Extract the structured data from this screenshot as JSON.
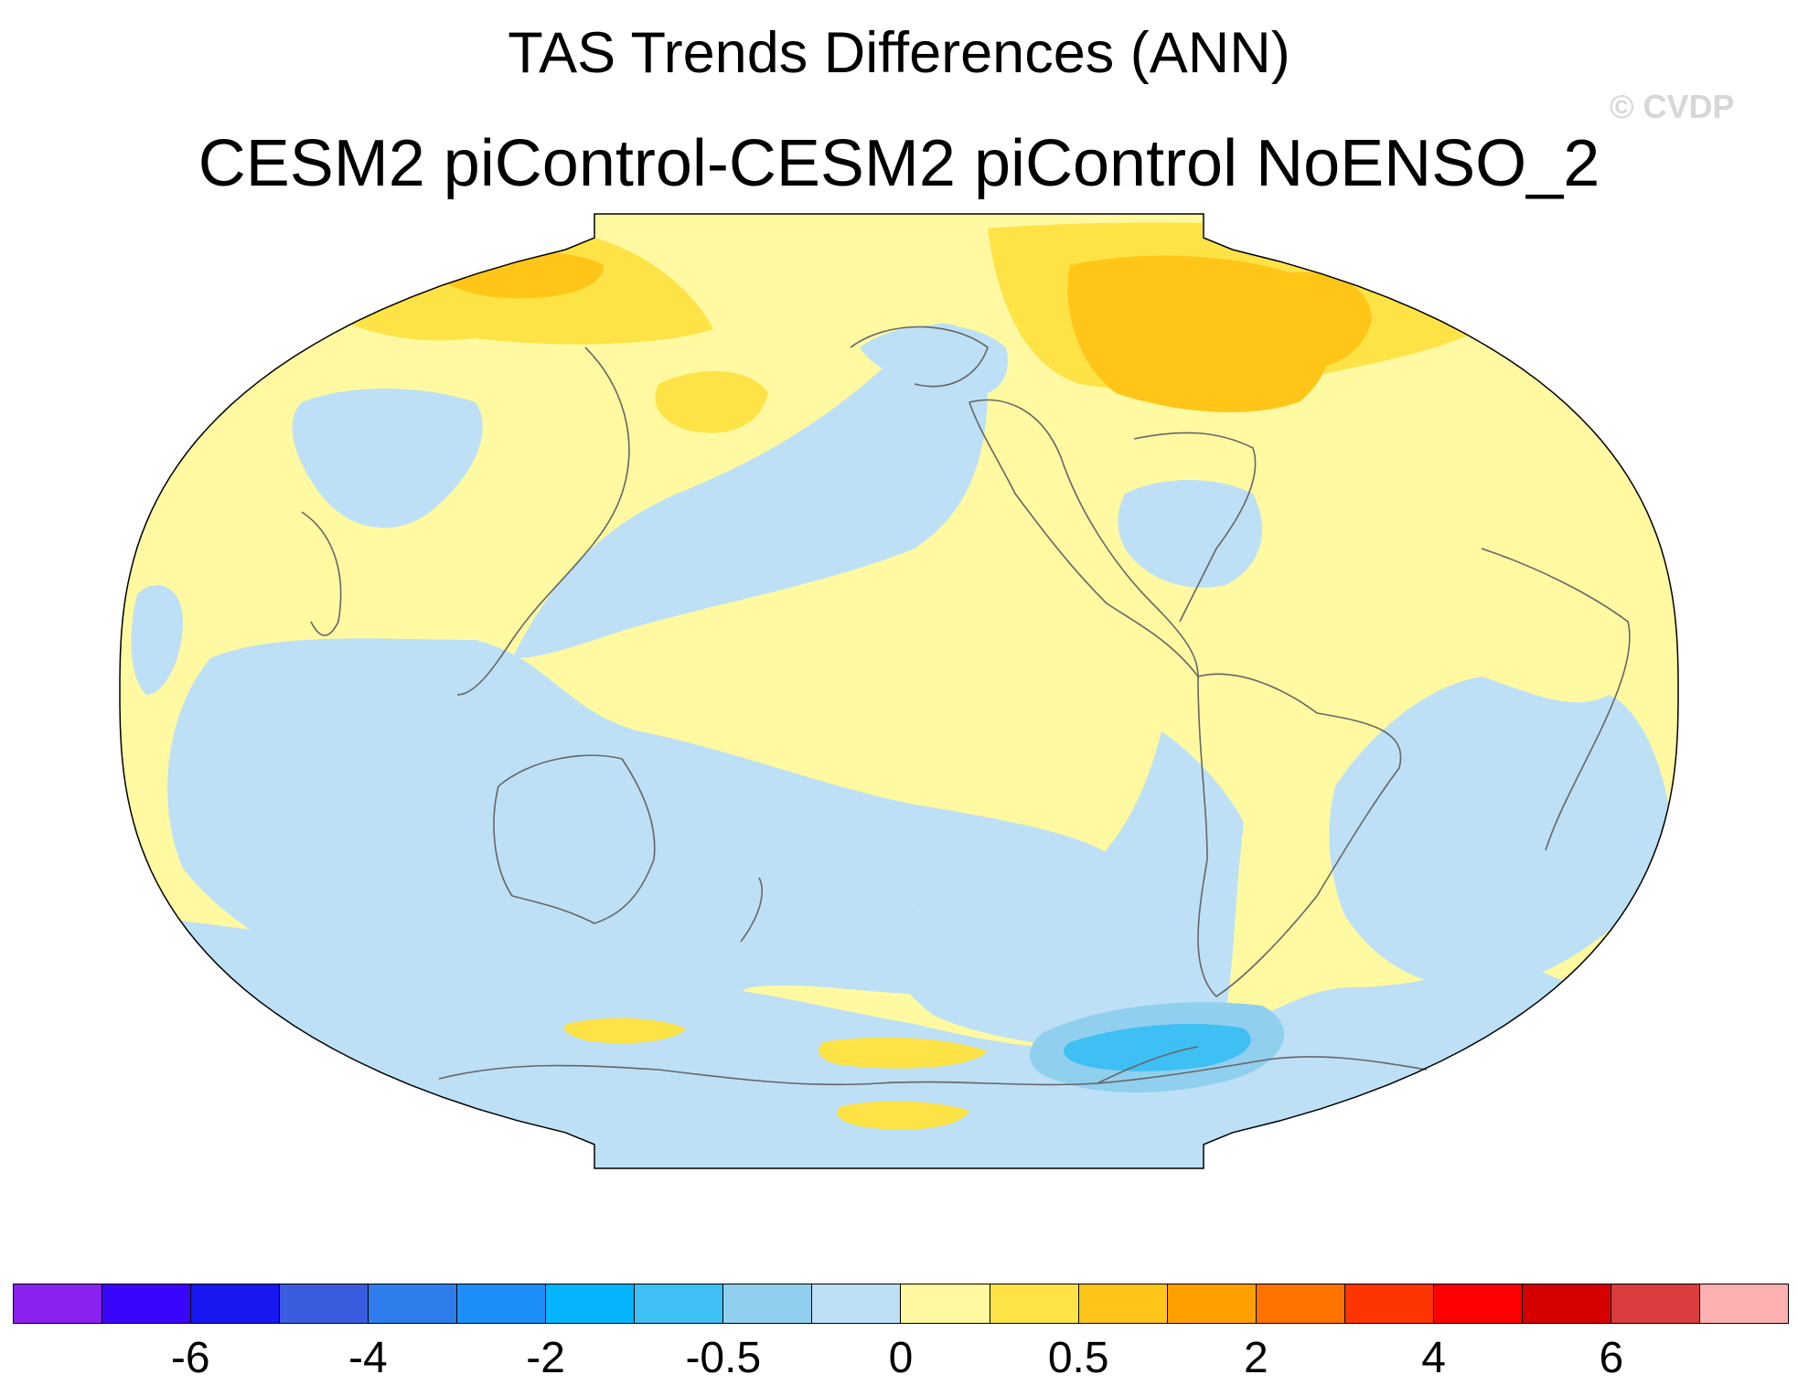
{
  "title": "TAS Trends Differences (ANN)",
  "subtitle": "CESM2 piControl-CESM2 piControl NoENSO_2",
  "watermark": "© CVDP",
  "projection": "robinson",
  "central_longitude": 180,
  "colorbar": {
    "colors": [
      "#8a21ee",
      "#3a06fb",
      "#1717f2",
      "#3c5ce0",
      "#2f7ded",
      "#1e8ff8",
      "#05b5fb",
      "#3ec0f4",
      "#91cfee",
      "#bde0f6",
      "#fff9a2",
      "#fee347",
      "#ffc519",
      "#ff9f00",
      "#ff7300",
      "#ff3500",
      "#ff0000",
      "#d60000",
      "#d93d3d",
      "#ffb0b0"
    ],
    "labels": [
      {
        "text": "-6",
        "boundary": 2
      },
      {
        "text": "-4",
        "boundary": 4
      },
      {
        "text": "-2",
        "boundary": 6
      },
      {
        "text": "-0.5",
        "boundary": 8
      },
      {
        "text": "0",
        "boundary": 10
      },
      {
        "text": "0.5",
        "boundary": 12
      },
      {
        "text": "2",
        "boundary": 14
      },
      {
        "text": "4",
        "boundary": 16
      },
      {
        "text": "6",
        "boundary": 18
      }
    ]
  },
  "legend_placement": "bottom"
}
